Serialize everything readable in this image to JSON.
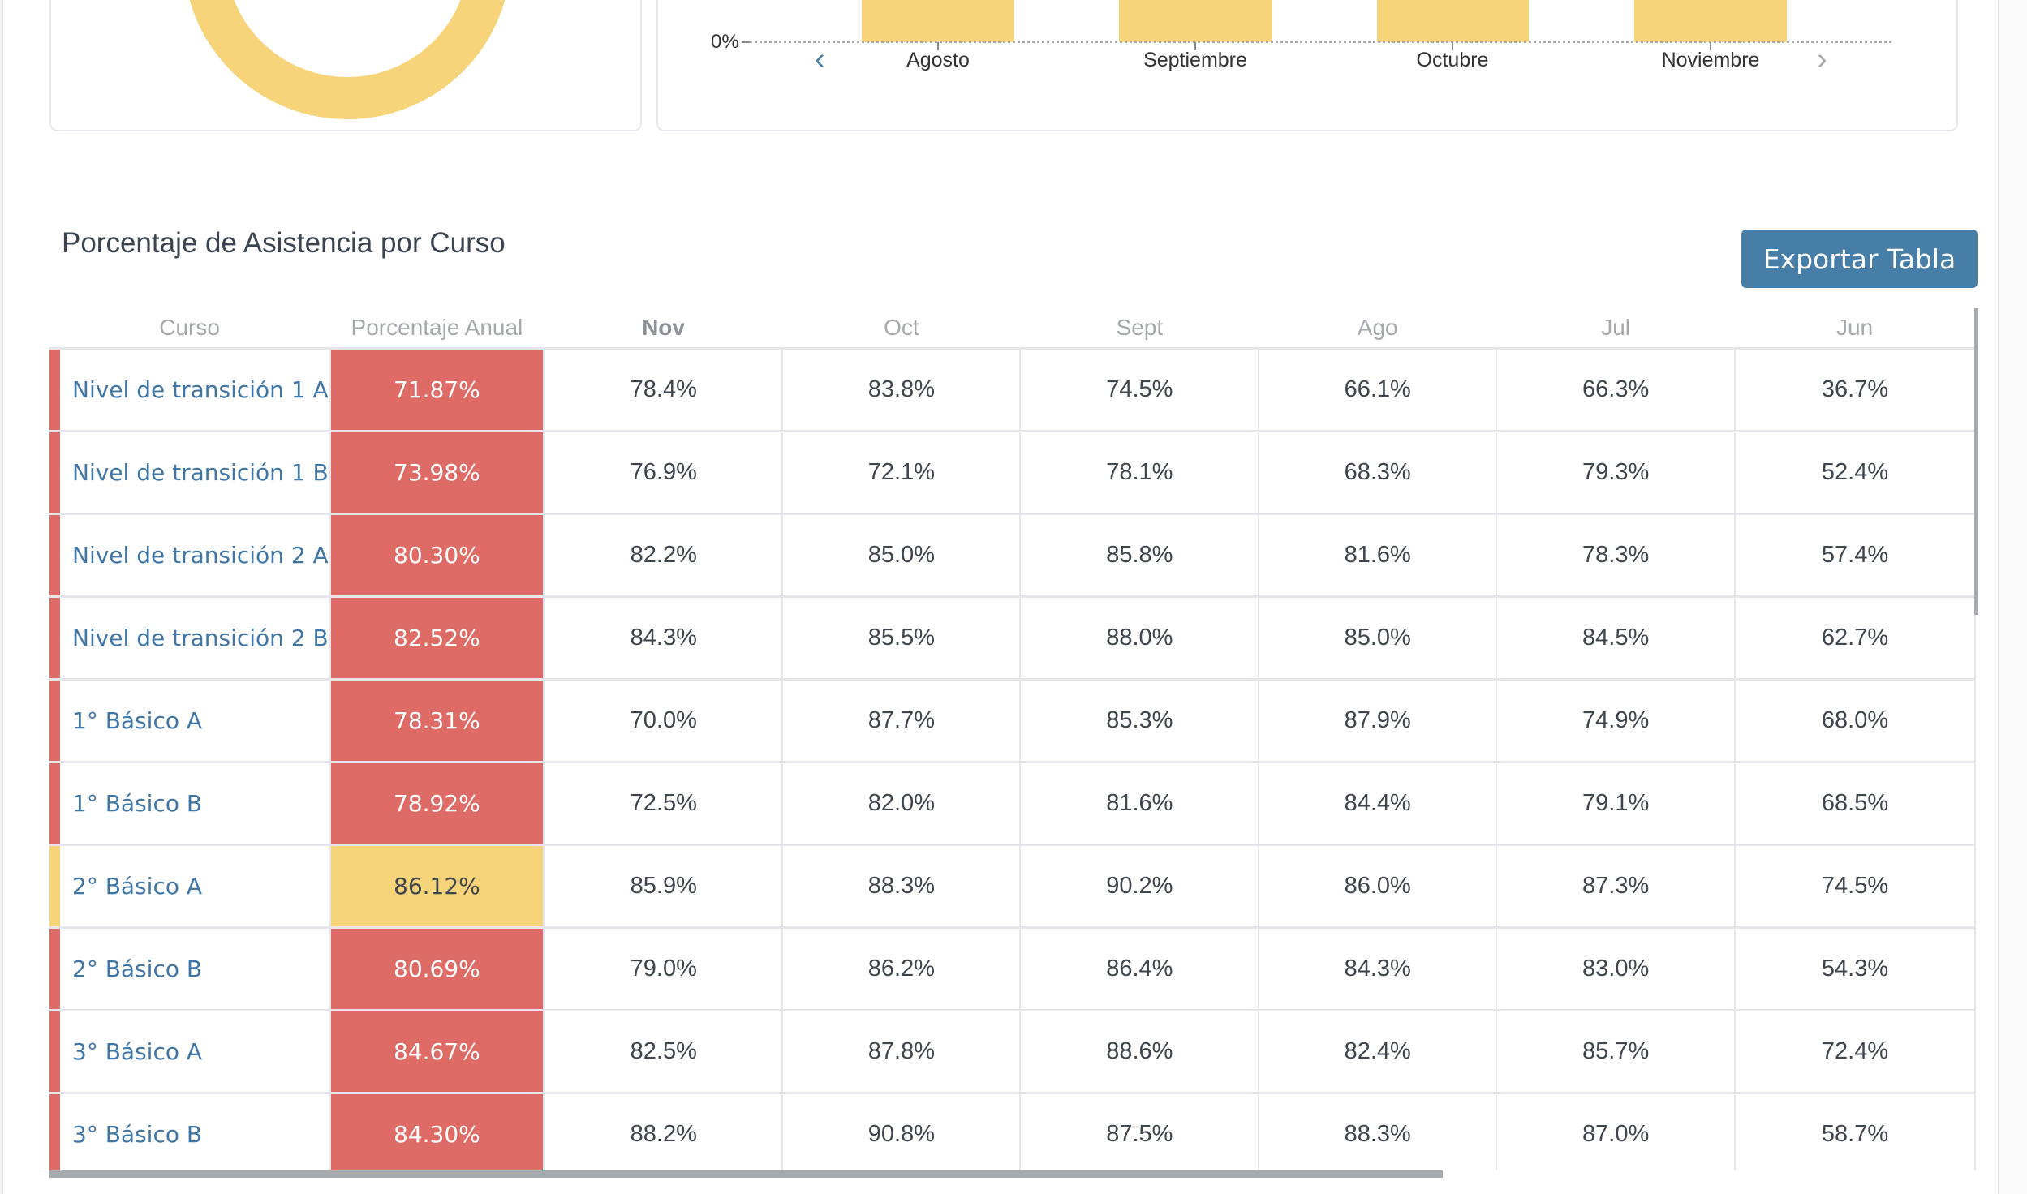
{
  "chart": {
    "y_tick": "0%",
    "months": [
      "Agosto",
      "Septiembre",
      "Octubre",
      "Noviembre"
    ],
    "prev_icon": "chevron-left-icon",
    "next_icon": "chevron-right-icon"
  },
  "section": {
    "title": "Porcentaje de Asistencia por Curso",
    "export_label": "Exportar Tabla"
  },
  "colors": {
    "red": "#de6b65",
    "yellow": "#f7d47a",
    "link": "#3f76a6",
    "button": "#467ea8"
  },
  "table": {
    "headers": [
      "Curso",
      "Porcentaje Anual",
      "Nov",
      "Oct",
      "Sept",
      "Ago",
      "Jul",
      "Jun"
    ],
    "rows": [
      {
        "curso": "Nivel de transición 1 A",
        "anual": "71.87%",
        "status": "red",
        "months": [
          "78.4%",
          "83.8%",
          "74.5%",
          "66.1%",
          "66.3%",
          "36.7%"
        ]
      },
      {
        "curso": "Nivel de transición 1 B",
        "anual": "73.98%",
        "status": "red",
        "months": [
          "76.9%",
          "72.1%",
          "78.1%",
          "68.3%",
          "79.3%",
          "52.4%"
        ]
      },
      {
        "curso": "Nivel de transición 2 A",
        "anual": "80.30%",
        "status": "red",
        "months": [
          "82.2%",
          "85.0%",
          "85.8%",
          "81.6%",
          "78.3%",
          "57.4%"
        ]
      },
      {
        "curso": "Nivel de transición 2 B",
        "anual": "82.52%",
        "status": "red",
        "months": [
          "84.3%",
          "85.5%",
          "88.0%",
          "85.0%",
          "84.5%",
          "62.7%"
        ]
      },
      {
        "curso": "1° Básico A",
        "anual": "78.31%",
        "status": "red",
        "months": [
          "70.0%",
          "87.7%",
          "85.3%",
          "87.9%",
          "74.9%",
          "68.0%"
        ]
      },
      {
        "curso": "1° Básico B",
        "anual": "78.92%",
        "status": "red",
        "months": [
          "72.5%",
          "82.0%",
          "81.6%",
          "84.4%",
          "79.1%",
          "68.5%"
        ]
      },
      {
        "curso": "2° Básico A",
        "anual": "86.12%",
        "status": "yellow",
        "months": [
          "85.9%",
          "88.3%",
          "90.2%",
          "86.0%",
          "87.3%",
          "74.5%"
        ]
      },
      {
        "curso": "2° Básico B",
        "anual": "80.69%",
        "status": "red",
        "months": [
          "79.0%",
          "86.2%",
          "86.4%",
          "84.3%",
          "83.0%",
          "54.3%"
        ]
      },
      {
        "curso": "3° Básico A",
        "anual": "84.67%",
        "status": "red",
        "months": [
          "82.5%",
          "87.8%",
          "88.6%",
          "82.4%",
          "85.7%",
          "72.4%"
        ]
      },
      {
        "curso": "3° Básico B",
        "anual": "84.30%",
        "status": "red",
        "months": [
          "88.2%",
          "90.8%",
          "87.5%",
          "88.3%",
          "87.0%",
          "58.7%"
        ]
      }
    ]
  }
}
